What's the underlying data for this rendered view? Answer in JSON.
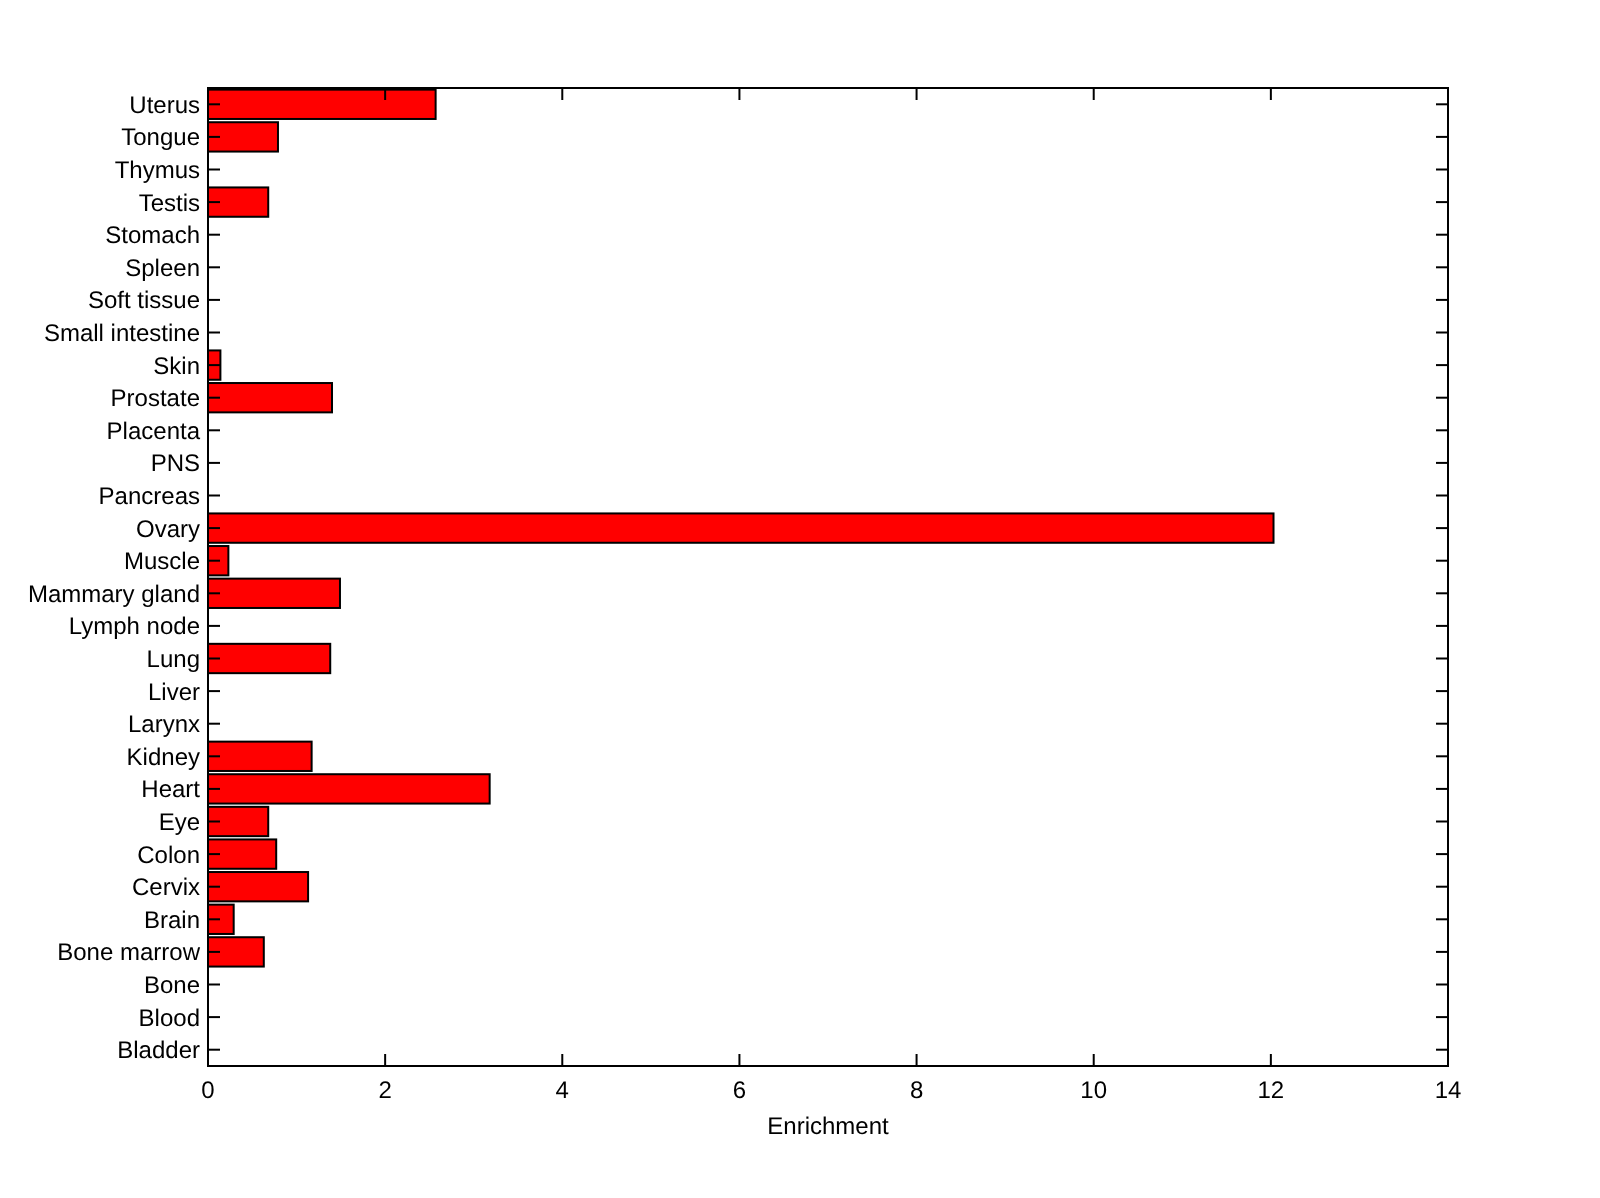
{
  "chart_data": {
    "type": "bar",
    "orientation": "horizontal",
    "xlabel": "Enrichment",
    "categories": [
      "Uterus",
      "Tongue",
      "Thymus",
      "Testis",
      "Stomach",
      "Spleen",
      "Soft tissue",
      "Small intestine",
      "Skin",
      "Prostate",
      "Placenta",
      "PNS",
      "Pancreas",
      "Ovary",
      "Muscle",
      "Mammary gland",
      "Lymph node",
      "Lung",
      "Liver",
      "Larynx",
      "Kidney",
      "Heart",
      "Eye",
      "Colon",
      "Cervix",
      "Brain",
      "Bone marrow",
      "Bone",
      "Blood",
      "Bladder"
    ],
    "values": [
      2.57,
      0.79,
      0,
      0.68,
      0,
      0,
      0,
      0,
      0.14,
      1.4,
      0,
      0,
      0,
      12.03,
      0.23,
      1.49,
      0,
      1.38,
      0,
      0,
      1.17,
      3.18,
      0.68,
      0.77,
      1.13,
      0.29,
      0.63,
      0,
      0,
      0
    ],
    "color": "#ff0000",
    "xlim": [
      0,
      14
    ],
    "xticks": [
      0,
      2,
      4,
      6,
      8,
      10,
      12,
      14
    ],
    "grid": false
  }
}
